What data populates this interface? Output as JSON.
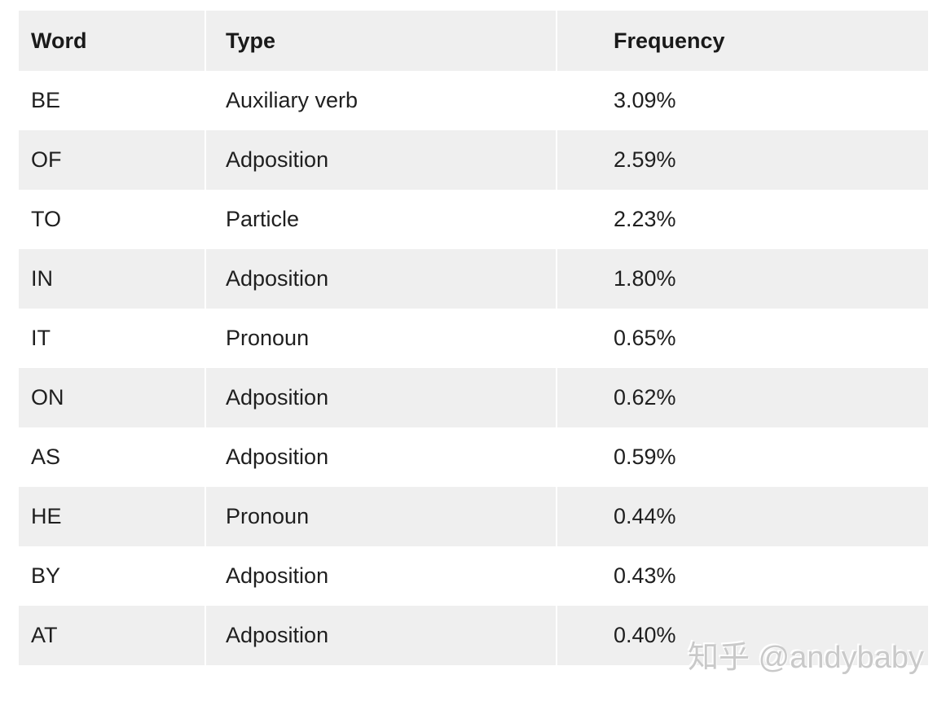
{
  "chart_data": {
    "type": "table",
    "columns": [
      "Word",
      "Type",
      "Frequency"
    ],
    "rows": [
      [
        "BE",
        "Auxiliary verb",
        "3.09%"
      ],
      [
        "OF",
        "Adposition",
        "2.59%"
      ],
      [
        "TO",
        "Particle",
        "2.23%"
      ],
      [
        "IN",
        "Adposition",
        "1.80%"
      ],
      [
        "IT",
        "Pronoun",
        "0.65%"
      ],
      [
        "ON",
        "Adposition",
        "0.62%"
      ],
      [
        "AS",
        "Adposition",
        "0.59%"
      ],
      [
        "HE",
        "Pronoun",
        "0.44%"
      ],
      [
        "BY",
        "Adposition",
        "0.43%"
      ],
      [
        "AT",
        "Adposition",
        "0.40%"
      ]
    ],
    "layout": {
      "striped": true,
      "header_row": true,
      "first_data_row_background": "white"
    }
  },
  "watermark": {
    "text": "知乎 @andybaby"
  },
  "colors": {
    "page_bg": "#ffffff",
    "stripe_bg": "#efefef",
    "body_text": "#1f1f1f",
    "header_text": "#1a1a1a",
    "watermark_text": "#c9c9c9"
  }
}
